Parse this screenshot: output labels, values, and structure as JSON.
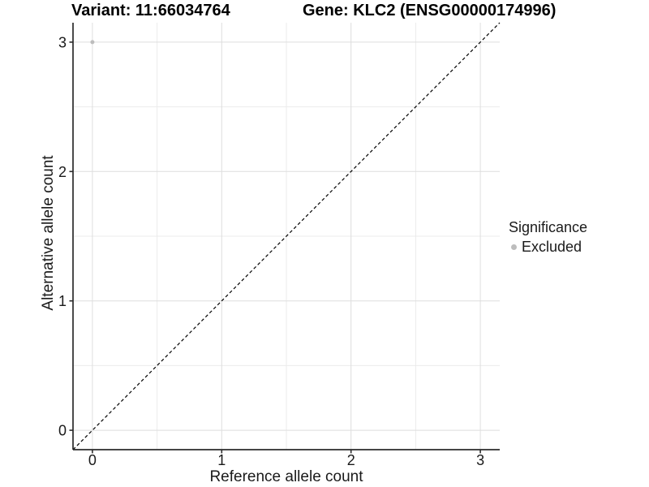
{
  "header": {
    "variant_title": "Variant: 11:66034764",
    "gene_title": "Gene: KLC2 (ENSG00000174996)"
  },
  "axes": {
    "x_label": "Reference allele count",
    "y_label": "Alternative allele count"
  },
  "legend": {
    "title": "Significance",
    "items": [
      {
        "label": "Excluded",
        "color": "#bdbdbd"
      }
    ]
  },
  "colors": {
    "background": "#ffffff",
    "axis_line": "#2b2b2b",
    "tick": "#2b2b2b",
    "tick_label": "#1a1a1a",
    "grid_major": "#dedede",
    "grid_minor": "#ebebeb",
    "reference_line": "#000000",
    "point": "#bdbdbd"
  },
  "chart_data": {
    "type": "scatter",
    "title": "Variant: 11:66034764    Gene: KLC2 (ENSG00000174996)",
    "xlabel": "Reference allele count",
    "ylabel": "Alternative allele count",
    "xlim": [
      -0.15,
      3.15
    ],
    "ylim": [
      -0.15,
      3.15
    ],
    "x_ticks": [
      0,
      1,
      2,
      3
    ],
    "y_ticks": [
      0,
      1,
      2,
      3
    ],
    "grid": {
      "major": [
        0,
        1,
        2,
        3
      ],
      "minor": [
        0.5,
        1.5,
        2.5
      ],
      "major_color": "#dedede",
      "minor_color": "#ebebeb"
    },
    "series": [
      {
        "name": "Excluded",
        "color": "#bdbdbd",
        "point_radius": 2.5,
        "points": [
          {
            "x": 0,
            "y": 3
          }
        ]
      }
    ],
    "reference_line": {
      "type": "identity",
      "style": "dashed",
      "color": "#000000",
      "from": [
        -0.15,
        -0.15
      ],
      "to": [
        3.15,
        3.15
      ]
    },
    "legend": {
      "title": "Significance",
      "position": "right",
      "items": [
        {
          "label": "Excluded",
          "color": "#bdbdbd"
        }
      ]
    }
  }
}
